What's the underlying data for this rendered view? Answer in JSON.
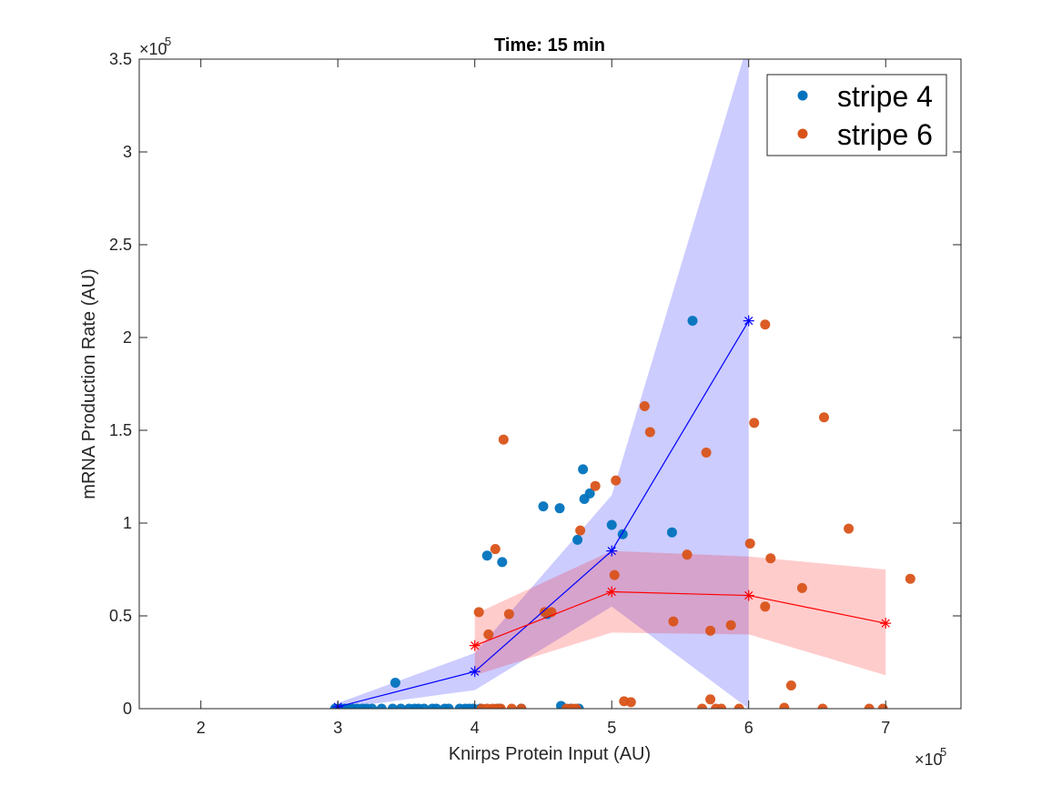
{
  "chart_data": {
    "type": "scatter",
    "title": "Time: 15 min",
    "xlabel": "Knirps Protein Input (AU)",
    "ylabel": "mRNA Production Rate (AU)",
    "x_exponent_label": "×10",
    "x_exponent_power": "5",
    "y_exponent_label": "×10",
    "y_exponent_power": "5",
    "xlim": [
      155000,
      755000
    ],
    "ylim": [
      0,
      350000
    ],
    "x_ticks": [
      200000,
      300000,
      400000,
      500000,
      600000,
      700000
    ],
    "x_tick_labels": [
      "2",
      "3",
      "4",
      "5",
      "6",
      "7"
    ],
    "y_ticks": [
      0,
      50000,
      100000,
      150000,
      200000,
      250000,
      300000,
      350000
    ],
    "y_tick_labels": [
      "0",
      "0.5",
      "1",
      "1.5",
      "2",
      "2.5",
      "3",
      "3.5"
    ],
    "grid": false,
    "legend_position": "top-right",
    "series": [
      {
        "name": "stripe 4",
        "color": "#0072bd",
        "points": [
          [
            298000,
            0
          ],
          [
            302000,
            0
          ],
          [
            305000,
            0
          ],
          [
            308000,
            0
          ],
          [
            311000,
            0
          ],
          [
            314000,
            0
          ],
          [
            318000,
            0
          ],
          [
            321000,
            0
          ],
          [
            325000,
            0
          ],
          [
            332000,
            0
          ],
          [
            340000,
            0
          ],
          [
            346000,
            0
          ],
          [
            352000,
            0
          ],
          [
            356000,
            0
          ],
          [
            359000,
            0
          ],
          [
            363000,
            0
          ],
          [
            369000,
            0
          ],
          [
            372000,
            0
          ],
          [
            378000,
            0
          ],
          [
            381000,
            0
          ],
          [
            389000,
            0
          ],
          [
            393000,
            0
          ],
          [
            396000,
            0
          ],
          [
            399000,
            0
          ],
          [
            404000,
            0
          ],
          [
            418000,
            0
          ],
          [
            434000,
            0
          ],
          [
            463000,
            1500
          ],
          [
            470000,
            0
          ],
          [
            476000,
            0
          ],
          [
            342000,
            14000
          ],
          [
            409000,
            82500
          ],
          [
            420000,
            79000
          ],
          [
            450000,
            109000
          ],
          [
            462000,
            108000
          ],
          [
            475000,
            91000
          ],
          [
            480000,
            113000
          ],
          [
            484000,
            116000
          ],
          [
            479000,
            129000
          ],
          [
            500000,
            99000
          ],
          [
            508000,
            94000
          ],
          [
            544000,
            95000
          ],
          [
            559000,
            209000
          ],
          [
            453000,
            51000
          ]
        ]
      },
      {
        "name": "stripe 6",
        "color": "#d95319",
        "points": [
          [
            403000,
            52000
          ],
          [
            410000,
            40000
          ],
          [
            415000,
            86000
          ],
          [
            421000,
            145000
          ],
          [
            425000,
            51000
          ],
          [
            451000,
            52000
          ],
          [
            456000,
            52000
          ],
          [
            477000,
            96000
          ],
          [
            488000,
            120000
          ],
          [
            502000,
            72000
          ],
          [
            503000,
            123000
          ],
          [
            524000,
            163000
          ],
          [
            528000,
            149000
          ],
          [
            555000,
            83000
          ],
          [
            545000,
            47000
          ],
          [
            569000,
            138000
          ],
          [
            572000,
            42000
          ],
          [
            587000,
            45000
          ],
          [
            601000,
            89000
          ],
          [
            604000,
            154000
          ],
          [
            612000,
            207000
          ],
          [
            612000,
            55000
          ],
          [
            616000,
            81000
          ],
          [
            626000,
            500
          ],
          [
            631000,
            12500
          ],
          [
            639000,
            65000
          ],
          [
            654000,
            0
          ],
          [
            655000,
            157000
          ],
          [
            673000,
            97000
          ],
          [
            688000,
            0
          ],
          [
            698000,
            0
          ],
          [
            718000,
            70000
          ],
          [
            572000,
            5000
          ],
          [
            576000,
            0
          ],
          [
            580000,
            0
          ],
          [
            509000,
            4000
          ],
          [
            514000,
            3500
          ],
          [
            405000,
            0
          ],
          [
            409000,
            0
          ],
          [
            413000,
            0
          ],
          [
            416000,
            0
          ],
          [
            419000,
            0
          ],
          [
            427000,
            0
          ],
          [
            434000,
            0
          ],
          [
            467000,
            0
          ],
          [
            471000,
            0
          ],
          [
            474000,
            0
          ],
          [
            566000,
            0
          ],
          [
            593000,
            0
          ]
        ]
      }
    ],
    "binned_stripe4": {
      "color": "#0000ff",
      "x": [
        300000,
        400000,
        500000,
        600000
      ],
      "y": [
        1000,
        20000,
        85000,
        209000
      ],
      "lower": [
        0,
        10000,
        55000,
        0
      ],
      "upper": [
        3000,
        30000,
        115000,
        360000
      ]
    },
    "binned_stripe6": {
      "color": "#ff0000",
      "x": [
        400000,
        500000,
        600000,
        700000
      ],
      "y": [
        34000,
        63000,
        61000,
        46000
      ],
      "lower": [
        18000,
        41000,
        40000,
        18000
      ],
      "upper": [
        51000,
        85000,
        82000,
        75000
      ]
    }
  }
}
